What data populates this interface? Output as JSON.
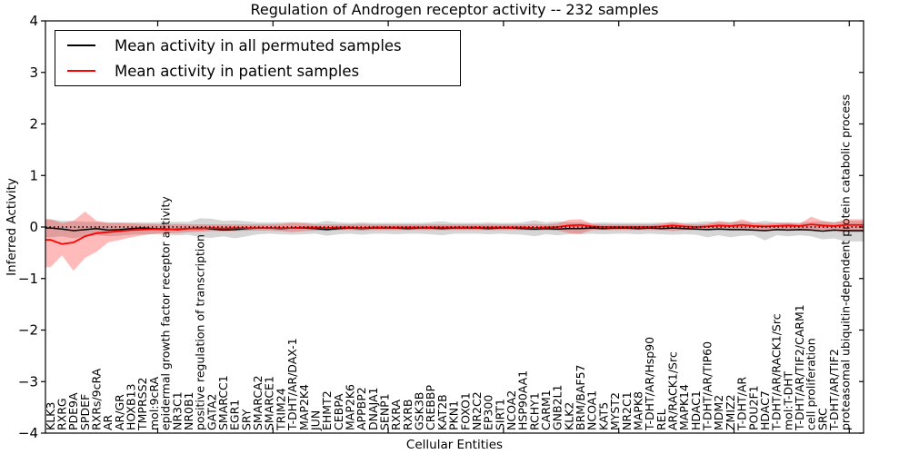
{
  "title": "Regulation of Androgen receptor activity -- 232 samples",
  "legend": {
    "entries": [
      {
        "label": "Mean activity in all permuted samples",
        "color": "#000000"
      },
      {
        "label": "Mean activity in patient samples",
        "color": "#ff0000"
      }
    ]
  },
  "chart_data": {
    "type": "line",
    "title": "Regulation of Androgen receptor activity -- 232 samples",
    "xlabel": "Cellular Entities",
    "ylabel": "Inferred Activity",
    "ylim": [
      -4,
      4
    ],
    "yticks": [
      "4",
      "3",
      "2",
      "1",
      "0",
      "−1",
      "−2",
      "−3",
      "−4"
    ],
    "ytick_values": [
      4,
      3,
      2,
      1,
      0,
      -1,
      -2,
      -3,
      -4
    ],
    "grid": false,
    "legend_position": "upper left",
    "zero_line": {
      "value": 0,
      "style": "dotted",
      "color": "#000000"
    },
    "categories": [
      "KLK3",
      "RXRG",
      "PDE9A",
      "SPDEF",
      "RXRs/9cRA",
      "AR",
      "AR/GR",
      "HOXB13",
      "TMPRSS2",
      "mol:9cRA",
      "epidermal growth factor receptor activity",
      "NR3C1",
      "NR0B1",
      "positive regulation of transcription",
      "GATA2",
      "SMARCC1",
      "EGR1",
      "SRY",
      "SMARCA2",
      "SMARCE1",
      "TRIM24",
      "T-DHT/AR/DAX-1",
      "MAP2K4",
      "JUN",
      "EHMT2",
      "CEBPA",
      "MAP2K6",
      "APPBP2",
      "DNAJA1",
      "SENP1",
      "RXRA",
      "RXRB",
      "GSK3B",
      "CREBBP",
      "KAT2B",
      "PKN1",
      "FOXO1",
      "NR2C2",
      "EP300",
      "SIRT1",
      "NCOA2",
      "HSP90AA1",
      "RCHY1",
      "CARM1",
      "GNB2L1",
      "KLK2",
      "BRM/BAF57",
      "NCOA1",
      "KAT5",
      "MYST2",
      "NR2C1",
      "MAPK8",
      "T-DHT/AR/Hsp90",
      "REL",
      "AR/RACK1/Src",
      "MAPK14",
      "HDAC1",
      "T-DHT/AR/TIP60",
      "MDM2",
      "ZMIZ2",
      "T-DHT/AR",
      "POU2F1",
      "HDAC7",
      "T-DHT/AR/RACK1/Src",
      "mol:T-DHT",
      "T-DHT/AR/TIF2/CARM1",
      "cell proliferation",
      "SRC",
      "T-DHT/AR/TIF2",
      "proteasomal ubiquitin-dependent protein catabolic process"
    ],
    "series": [
      {
        "name": "Mean activity in all permuted samples",
        "color": "#000000",
        "band_color": "#000000",
        "band_opacity": 0.16,
        "values": [
          -0.02,
          -0.04,
          -0.07,
          -0.05,
          -0.03,
          -0.06,
          -0.05,
          -0.03,
          -0.02,
          -0.03,
          -0.04,
          -0.05,
          -0.03,
          -0.02,
          -0.04,
          -0.06,
          -0.05,
          -0.03,
          -0.02,
          -0.02,
          -0.03,
          -0.02,
          -0.02,
          -0.03,
          -0.05,
          -0.03,
          -0.02,
          -0.03,
          -0.02,
          -0.02,
          -0.02,
          -0.03,
          -0.02,
          -0.02,
          -0.03,
          -0.02,
          -0.02,
          -0.02,
          -0.03,
          -0.02,
          -0.02,
          -0.03,
          -0.04,
          -0.03,
          -0.04,
          -0.03,
          -0.03,
          -0.02,
          -0.03,
          -0.02,
          -0.02,
          -0.03,
          -0.02,
          -0.03,
          -0.02,
          -0.03,
          -0.04,
          -0.05,
          -0.04,
          -0.05,
          -0.05,
          -0.06,
          -0.07,
          -0.05,
          -0.06,
          -0.05,
          -0.06,
          -0.08,
          -0.06,
          -0.07
        ],
        "band_low": [
          -0.2,
          -0.18,
          -0.22,
          -0.18,
          -0.16,
          -0.18,
          -0.17,
          -0.15,
          -0.14,
          -0.14,
          -0.15,
          -0.16,
          -0.15,
          -0.2,
          -0.21,
          -0.18,
          -0.22,
          -0.18,
          -0.14,
          -0.13,
          -0.14,
          -0.15,
          -0.14,
          -0.13,
          -0.17,
          -0.14,
          -0.13,
          -0.15,
          -0.13,
          -0.13,
          -0.14,
          -0.13,
          -0.13,
          -0.14,
          -0.16,
          -0.13,
          -0.13,
          -0.13,
          -0.14,
          -0.13,
          -0.14,
          -0.15,
          -0.18,
          -0.14,
          -0.16,
          -0.14,
          -0.14,
          -0.13,
          -0.14,
          -0.13,
          -0.13,
          -0.14,
          -0.13,
          -0.14,
          -0.15,
          -0.14,
          -0.15,
          -0.2,
          -0.16,
          -0.2,
          -0.17,
          -0.16,
          -0.26,
          -0.16,
          -0.18,
          -0.16,
          -0.18,
          -0.24,
          -0.22,
          -0.28
        ],
        "band_high": [
          0.15,
          0.12,
          0.12,
          0.1,
          0.1,
          0.09,
          0.09,
          0.09,
          0.09,
          0.09,
          0.1,
          0.1,
          0.1,
          0.17,
          0.16,
          0.12,
          0.13,
          0.11,
          0.09,
          0.09,
          0.09,
          0.1,
          0.09,
          0.08,
          0.12,
          0.09,
          0.08,
          0.09,
          0.08,
          0.08,
          0.08,
          0.08,
          0.08,
          0.09,
          0.11,
          0.08,
          0.08,
          0.08,
          0.09,
          0.08,
          0.08,
          0.09,
          0.13,
          0.09,
          0.11,
          0.09,
          0.09,
          0.08,
          0.09,
          0.08,
          0.08,
          0.08,
          0.08,
          0.09,
          0.09,
          0.08,
          0.09,
          0.11,
          0.09,
          0.1,
          0.1,
          0.09,
          0.12,
          0.09,
          0.09,
          0.09,
          0.1,
          0.11,
          0.1,
          0.12
        ]
      },
      {
        "name": "Mean activity in patient samples",
        "color": "#ff0000",
        "band_color": "#ff0000",
        "band_opacity": 0.27,
        "values": [
          -0.25,
          -0.33,
          -0.3,
          -0.18,
          -0.12,
          -0.1,
          -0.08,
          -0.06,
          -0.05,
          -0.04,
          -0.05,
          -0.04,
          -0.03,
          -0.03,
          -0.02,
          -0.03,
          -0.02,
          -0.02,
          -0.02,
          -0.02,
          -0.02,
          -0.02,
          -0.01,
          -0.01,
          -0.02,
          -0.01,
          -0.01,
          -0.02,
          -0.01,
          -0.01,
          -0.01,
          -0.01,
          -0.01,
          -0.01,
          -0.01,
          -0.01,
          -0.01,
          -0.01,
          -0.01,
          -0.01,
          -0.01,
          -0.01,
          -0.02,
          -0.01,
          0.0,
          0.03,
          0.04,
          0.01,
          0.0,
          0.0,
          0.0,
          0.0,
          0.0,
          0.01,
          0.03,
          0.01,
          0.0,
          0.01,
          0.03,
          0.02,
          0.04,
          0.02,
          0.01,
          0.02,
          0.03,
          0.02,
          0.05,
          0.03,
          0.02,
          0.04
        ],
        "band_low": [
          -0.78,
          -0.55,
          -0.85,
          -0.6,
          -0.48,
          -0.3,
          -0.25,
          -0.2,
          -0.16,
          -0.13,
          -0.12,
          -0.12,
          -0.1,
          -0.09,
          -0.08,
          -0.08,
          -0.08,
          -0.07,
          -0.07,
          -0.07,
          -0.08,
          -0.1,
          -0.08,
          -0.07,
          -0.07,
          -0.06,
          -0.06,
          -0.07,
          -0.06,
          -0.06,
          -0.06,
          -0.06,
          -0.06,
          -0.06,
          -0.06,
          -0.06,
          -0.06,
          -0.06,
          -0.06,
          -0.06,
          -0.06,
          -0.06,
          -0.07,
          -0.06,
          -0.07,
          -0.12,
          -0.13,
          -0.06,
          -0.06,
          -0.06,
          -0.06,
          -0.06,
          -0.06,
          -0.06,
          -0.08,
          -0.06,
          -0.06,
          -0.06,
          -0.06,
          -0.06,
          -0.05,
          -0.05,
          -0.06,
          -0.05,
          -0.06,
          -0.05,
          -0.06,
          -0.05,
          -0.07,
          -0.1
        ],
        "band_high": [
          0.15,
          0.08,
          0.12,
          0.3,
          0.12,
          0.08,
          0.08,
          0.07,
          0.06,
          0.06,
          0.05,
          0.06,
          0.05,
          0.05,
          0.05,
          0.05,
          0.05,
          0.05,
          0.05,
          0.05,
          0.06,
          0.08,
          0.07,
          0.05,
          0.05,
          0.05,
          0.05,
          0.06,
          0.05,
          0.05,
          0.05,
          0.05,
          0.05,
          0.05,
          0.05,
          0.05,
          0.05,
          0.05,
          0.05,
          0.05,
          0.05,
          0.05,
          0.06,
          0.05,
          0.07,
          0.14,
          0.15,
          0.06,
          0.05,
          0.05,
          0.05,
          0.05,
          0.05,
          0.06,
          0.1,
          0.06,
          0.05,
          0.06,
          0.12,
          0.08,
          0.15,
          0.08,
          0.06,
          0.08,
          0.08,
          0.06,
          0.2,
          0.12,
          0.08,
          0.15
        ]
      }
    ]
  }
}
